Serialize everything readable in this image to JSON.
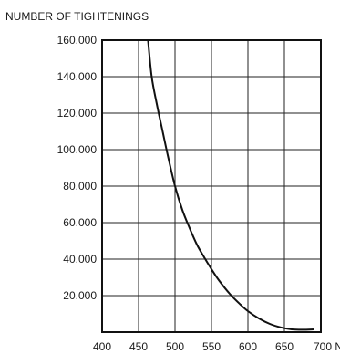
{
  "chart_data": {
    "type": "line",
    "title": "NUMBER OF TIGHTENINGS",
    "xlabel": "",
    "ylabel": "",
    "x_unit": "N",
    "xlim": [
      400,
      700
    ],
    "ylim": [
      0,
      160000
    ],
    "x_ticks": [
      400,
      450,
      500,
      550,
      600,
      650,
      700
    ],
    "x_tick_labels": [
      "400",
      "450",
      "500",
      "550",
      "600",
      "650",
      "700 N"
    ],
    "y_ticks": [
      20000,
      40000,
      60000,
      80000,
      100000,
      120000,
      140000,
      160000
    ],
    "y_tick_labels": [
      "20.000",
      "40.000",
      "60.000",
      "80.000",
      "100.000",
      "120.000",
      "140.000",
      "160.000"
    ],
    "grid": true,
    "series": [
      {
        "x": [
          463,
          468,
          475,
          483,
          490,
          500,
          510,
          520,
          530,
          540,
          550,
          560,
          575,
          590,
          600,
          615,
          630,
          645,
          660,
          675,
          690
        ],
        "y": [
          160000,
          140000,
          125000,
          110000,
          97000,
          80000,
          67000,
          57000,
          48000,
          41000,
          34500,
          28500,
          21000,
          15000,
          11500,
          7500,
          4500,
          2600,
          1500,
          1300,
          1500
        ]
      }
    ]
  }
}
